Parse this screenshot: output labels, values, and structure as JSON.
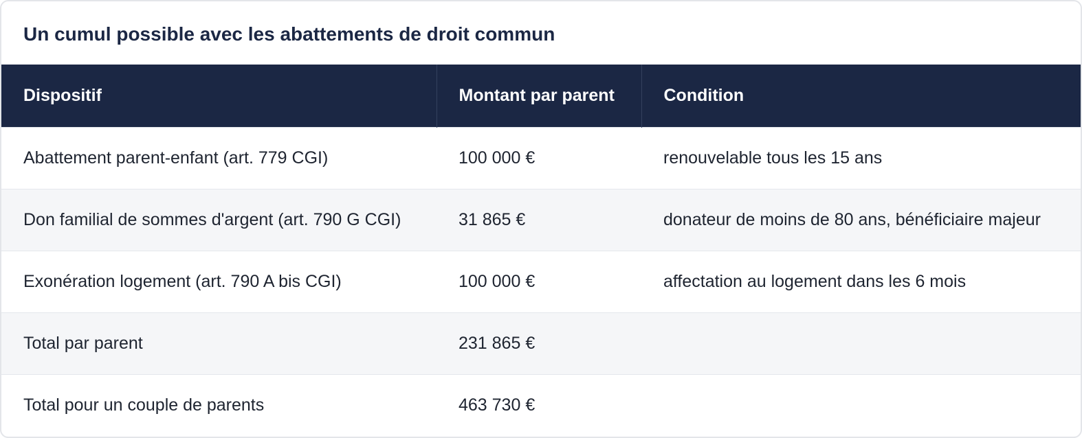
{
  "title": "Un cumul possible avec les abattements de droit commun",
  "columns": {
    "dispositif": "Dispositif",
    "montant": "Montant par parent",
    "condition": "Condition"
  },
  "rows": [
    {
      "dispositif": "Abattement parent-enfant (art. 779 CGI)",
      "montant": "100 000 €",
      "condition": "renouvelable tous les 15 ans"
    },
    {
      "dispositif": "Don familial de sommes d'argent (art. 790 G CGI)",
      "montant": "31 865 €",
      "condition": "donateur de moins de 80 ans, bénéficiaire majeur"
    },
    {
      "dispositif": "Exonération logement (art. 790 A bis CGI)",
      "montant": "100 000 €",
      "condition": "affectation au logement dans les 6 mois"
    },
    {
      "dispositif": "Total par parent",
      "montant": "231 865 €",
      "condition": ""
    },
    {
      "dispositif": "Total pour un couple de parents",
      "montant": "463 730 €",
      "condition": ""
    }
  ]
}
